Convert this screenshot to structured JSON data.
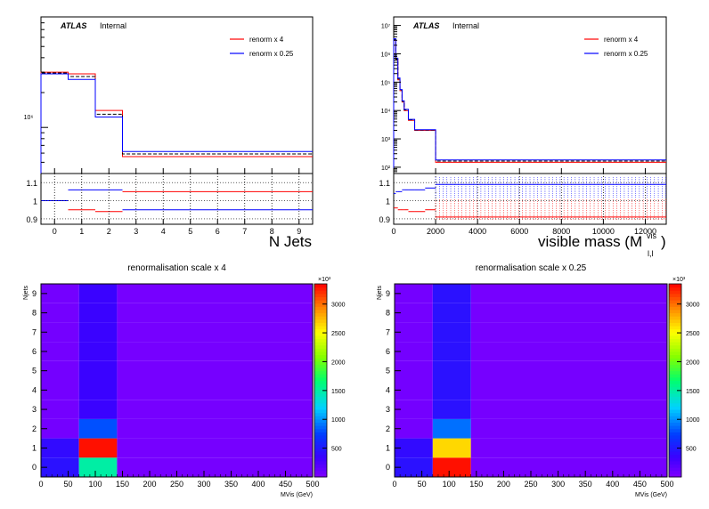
{
  "chart_data": [
    {
      "id": "njets",
      "type": "line",
      "label": "ATLAS",
      "label_suffix": "Internal",
      "xlabel": "N Jets",
      "x_ticks": [
        "0",
        "1",
        "2",
        "3",
        "4",
        "5",
        "6",
        "7",
        "8",
        "9"
      ],
      "bin_edges": [
        -0.5,
        0.5,
        1.5,
        2.5,
        9.5
      ],
      "log_y": true,
      "y_tick_label": "10⁶",
      "series": [
        {
          "name": "renorm x 4",
          "color": "#ff0000",
          "values": [
            3000000,
            2900000,
            1400000,
            560000
          ]
        },
        {
          "name": "",
          "color": "#000000",
          "dashed": true,
          "values": [
            2950000,
            2750000,
            1300000,
            590000
          ]
        },
        {
          "name": "renorm x 0.25",
          "color": "#0000ff",
          "values": [
            2900000,
            2600000,
            1230000,
            620000
          ]
        }
      ],
      "ratio": {
        "y_ticks": [
          "1.1",
          "1",
          "0.9"
        ],
        "ylim": [
          0.87,
          1.15
        ],
        "series": [
          {
            "color": "#ff0000",
            "values": [
              1.0,
              0.95,
              0.94,
              1.05
            ]
          },
          {
            "color": "#0000ff",
            "values": [
              1.0,
              1.06,
              1.06,
              0.95
            ]
          }
        ]
      }
    },
    {
      "id": "mvis",
      "type": "line",
      "label": "ATLAS",
      "label_suffix": "Internal",
      "xlabel": "visible mass (M",
      "xlabel_sup": "vis",
      "xlabel_sub": "l,l",
      "xlabel_close": ")",
      "x_ticks": [
        "0",
        "2000",
        "4000",
        "6000",
        "8000",
        "10000",
        "12000"
      ],
      "xlim": [
        0,
        13000
      ],
      "log_y": true,
      "y_tick_labels": [
        "10⁷",
        "10⁶",
        "10⁵",
        "10⁴",
        "10³",
        "10²"
      ],
      "ylim": [
        60,
        20000000
      ],
      "bin_edges": [
        0,
        100,
        200,
        300,
        400,
        500,
        700,
        1000,
        1500,
        2000,
        13000
      ],
      "series": [
        {
          "name": "renorm x 4",
          "color": "#ff0000",
          "values": [
            3000000,
            600000,
            120000,
            50000,
            20000,
            10000,
            4500,
            2000,
            2000,
            150
          ]
        },
        {
          "name": "",
          "color": "#000000",
          "dashed": true,
          "values": [
            3200000,
            650000,
            130000,
            52000,
            21000,
            10500,
            4700,
            2050,
            2050,
            165
          ]
        },
        {
          "name": "renorm x 0.25",
          "color": "#0000ff",
          "values": [
            3400000,
            700000,
            140000,
            55000,
            22000,
            11000,
            4900,
            2100,
            2100,
            180
          ]
        }
      ],
      "ratio": {
        "y_ticks": [
          "1.1",
          "1",
          "0.9"
        ],
        "ylim": [
          0.87,
          1.15
        ],
        "series": [
          {
            "color": "#ff0000",
            "values": [
              0.96,
              0.96,
              0.95,
              0.95,
              0.95,
              0.95,
              0.94,
              0.94,
              0.95,
              0.91
            ]
          },
          {
            "color": "#0000ff",
            "values": [
              1.04,
              1.05,
              1.05,
              1.05,
              1.06,
              1.06,
              1.06,
              1.06,
              1.07,
              1.09
            ]
          }
        ]
      }
    },
    {
      "id": "heat4",
      "type": "heatmap",
      "title": "renormalisation scale x 4",
      "xlabel": "MVis (GeV)",
      "ylabel": "Njets",
      "x_ticks": [
        "0",
        "50",
        "100",
        "150",
        "200",
        "250",
        "300",
        "350",
        "400",
        "450",
        "500"
      ],
      "y_ticks": [
        "0",
        "1",
        "2",
        "3",
        "4",
        "5",
        "6",
        "7",
        "8",
        "9"
      ],
      "xlim": [
        0,
        500
      ],
      "ylim": [
        -0.5,
        9.5
      ],
      "colorbar_ticks": [
        "500",
        "1000",
        "1500",
        "2000",
        "2500",
        "3000"
      ],
      "colorbar_exponent": "×10³",
      "zmax": 3350,
      "x_edges": [
        0,
        70,
        140,
        500
      ],
      "cells": [
        [
          450,
          1500,
          50
        ],
        [
          400,
          3300,
          50
        ],
        [
          60,
          800,
          50
        ],
        [
          60,
          350,
          50
        ],
        [
          60,
          350,
          50
        ],
        [
          60,
          350,
          50
        ],
        [
          60,
          350,
          50
        ],
        [
          60,
          350,
          50
        ],
        [
          60,
          350,
          50
        ],
        [
          60,
          350,
          50
        ]
      ]
    },
    {
      "id": "heat025",
      "type": "heatmap",
      "title": "renormalisation scale x 0.25",
      "xlabel": "MVis (GeV)",
      "ylabel": "Njets",
      "x_ticks": [
        "0",
        "50",
        "100",
        "150",
        "200",
        "250",
        "300",
        "350",
        "400",
        "450",
        "500"
      ],
      "y_ticks": [
        "0",
        "1",
        "2",
        "3",
        "4",
        "5",
        "6",
        "7",
        "8",
        "9"
      ],
      "xlim": [
        0,
        500
      ],
      "ylim": [
        -0.5,
        9.5
      ],
      "colorbar_ticks": [
        "500",
        "1000",
        "1500",
        "2000",
        "2500",
        "3000"
      ],
      "colorbar_exponent": "×10³",
      "zmax": 3350,
      "x_edges": [
        0,
        70,
        140,
        500
      ],
      "cells": [
        [
          450,
          3300,
          50
        ],
        [
          400,
          2650,
          50
        ],
        [
          60,
          900,
          50
        ],
        [
          60,
          450,
          50
        ],
        [
          60,
          450,
          50
        ],
        [
          60,
          450,
          50
        ],
        [
          60,
          450,
          50
        ],
        [
          60,
          450,
          50
        ],
        [
          60,
          450,
          50
        ],
        [
          60,
          450,
          50
        ]
      ]
    }
  ]
}
